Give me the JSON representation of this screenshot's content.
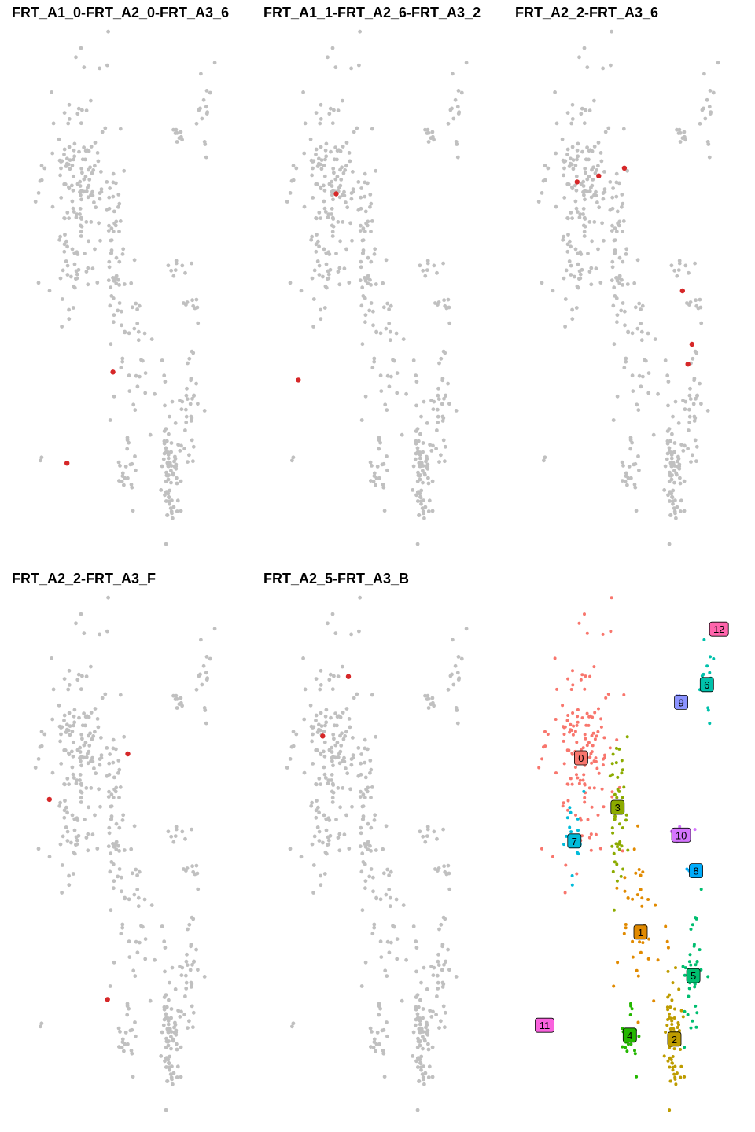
{
  "colors": {
    "background_points": "#C0C0C0",
    "highlight_points": "#D62728",
    "clusters": {
      "0": "#F8766D",
      "1": "#E18A00",
      "2": "#BE9C00",
      "3": "#8CAB00",
      "4": "#24B700",
      "5": "#00BE70",
      "6": "#00C1AB",
      "7": "#00BBDA",
      "8": "#00ACFC",
      "9": "#8B93FF",
      "10": "#D575FE",
      "11": "#F962DD",
      "12": "#FF65AC"
    }
  },
  "chart_data": [
    {
      "type": "scatter",
      "title": "FRT_A1_0-FRT_A2_0-FRT_A3_6",
      "highlighted": [
        [
          -6.5,
          3.8
        ],
        [
          -3.1,
          8.4
        ]
      ]
    },
    {
      "type": "scatter",
      "title": "FRT_A1_1-FRT_A2_6-FRT_A3_2",
      "highlighted": [
        [
          -5.2,
          17.4
        ],
        [
          -8.0,
          8.0
        ]
      ]
    },
    {
      "type": "scatter",
      "title": "FRT_A2_2-FRT_A3_6",
      "highlighted": [
        [
          -6.0,
          18.0
        ],
        [
          -4.4,
          18.3
        ],
        [
          -2.5,
          18.7
        ],
        [
          1.8,
          12.5
        ],
        [
          2.2,
          8.8
        ],
        [
          2.5,
          9.8
        ]
      ]
    },
    {
      "type": "scatter",
      "title": "FRT_A2_2-FRT_A3_F",
      "highlighted": [
        [
          -7.8,
          15.4
        ],
        [
          -2.0,
          17.7
        ],
        [
          -3.5,
          5.3
        ]
      ]
    },
    {
      "type": "scatter",
      "title": "FRT_A2_5-FRT_A3_B",
      "highlighted": [
        [
          -6.2,
          18.6
        ],
        [
          -4.3,
          21.6
        ]
      ]
    },
    {
      "type": "scatter",
      "title": "",
      "clusters": [
        {
          "label": "0",
          "center": [
            -5.7,
            17.5
          ]
        },
        {
          "label": "1",
          "center": [
            -1.3,
            8.7
          ]
        },
        {
          "label": "2",
          "center": [
            1.2,
            3.3
          ]
        },
        {
          "label": "3",
          "center": [
            -3.0,
            15.0
          ]
        },
        {
          "label": "4",
          "center": [
            -2.1,
            3.5
          ]
        },
        {
          "label": "5",
          "center": [
            2.6,
            6.5
          ]
        },
        {
          "label": "6",
          "center": [
            3.6,
            21.2
          ]
        },
        {
          "label": "7",
          "center": [
            -6.2,
            13.3
          ]
        },
        {
          "label": "8",
          "center": [
            2.8,
            11.8
          ]
        },
        {
          "label": "9",
          "center": [
            1.7,
            20.3
          ]
        },
        {
          "label": "10",
          "center": [
            1.7,
            13.6
          ]
        },
        {
          "label": "11",
          "center": [
            -8.4,
            4.0
          ]
        },
        {
          "label": "12",
          "center": [
            4.5,
            24.0
          ]
        }
      ]
    }
  ]
}
